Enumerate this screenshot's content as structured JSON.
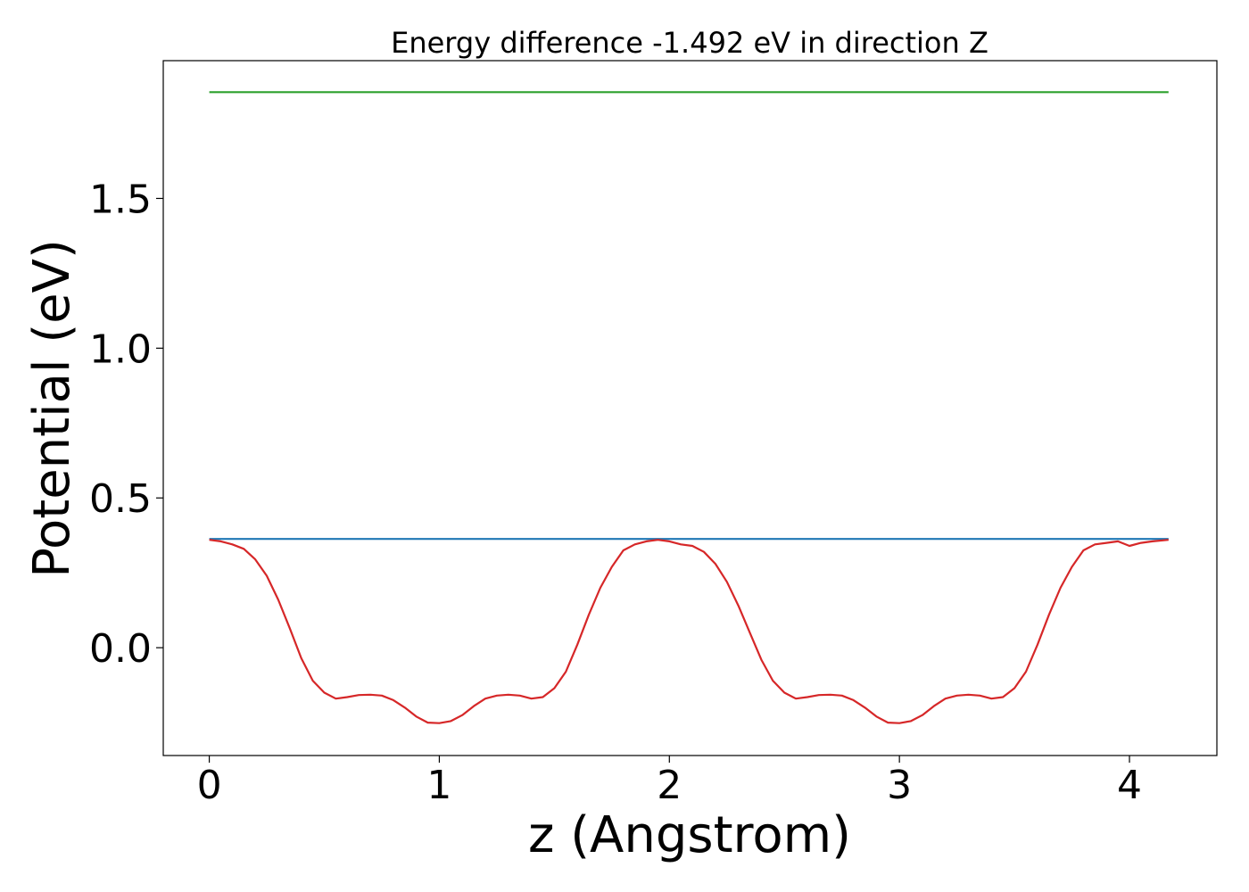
{
  "chart_data": {
    "type": "line",
    "title": "Energy difference -1.492 eV in direction Z",
    "xlabel": "z (Angstrom)",
    "ylabel": "Potential (eV)",
    "xlim": [
      -0.2,
      4.38
    ],
    "ylim": [
      -0.36,
      1.96
    ],
    "xticks": [
      0,
      1,
      2,
      3,
      4
    ],
    "xtick_labels": [
      "0",
      "1",
      "2",
      "3",
      "4"
    ],
    "yticks": [
      0.0,
      0.5,
      1.0,
      1.5
    ],
    "ytick_labels": [
      "0.0",
      "0.5",
      "1.0",
      "1.5"
    ],
    "grid": false,
    "series": [
      {
        "color": "#2ca02c",
        "x": [
          0,
          4.17
        ],
        "y": [
          1.855,
          1.855
        ]
      },
      {
        "color": "#1f77b4",
        "x": [
          0,
          4.17
        ],
        "y": [
          0.363,
          0.363
        ]
      },
      {
        "color": "#d62728",
        "x": [
          0.0,
          0.05,
          0.1,
          0.15,
          0.2,
          0.25,
          0.3,
          0.35,
          0.4,
          0.45,
          0.5,
          0.55,
          0.6,
          0.65,
          0.7,
          0.75,
          0.8,
          0.85,
          0.9,
          0.95,
          1.0,
          1.05,
          1.1,
          1.15,
          1.2,
          1.25,
          1.3,
          1.35,
          1.4,
          1.45,
          1.5,
          1.55,
          1.6,
          1.65,
          1.7,
          1.75,
          1.8,
          1.85,
          1.9,
          1.95,
          2.0,
          2.05,
          2.1,
          2.15,
          2.2,
          2.25,
          2.3,
          2.35,
          2.4,
          2.45,
          2.5,
          2.55,
          2.6,
          2.65,
          2.7,
          2.75,
          2.8,
          2.85,
          2.9,
          2.95,
          3.0,
          3.05,
          3.1,
          3.15,
          3.2,
          3.25,
          3.3,
          3.35,
          3.4,
          3.45,
          3.5,
          3.55,
          3.6,
          3.65,
          3.7,
          3.75,
          3.8,
          3.85,
          3.9,
          3.95,
          4.0,
          4.05,
          4.1,
          4.17
        ],
        "y": [
          0.36,
          0.355,
          0.345,
          0.33,
          0.295,
          0.24,
          0.16,
          0.065,
          -0.035,
          -0.11,
          -0.15,
          -0.17,
          -0.165,
          -0.158,
          -0.157,
          -0.16,
          -0.175,
          -0.2,
          -0.23,
          -0.25,
          -0.252,
          -0.245,
          -0.225,
          -0.195,
          -0.17,
          -0.16,
          -0.157,
          -0.16,
          -0.17,
          -0.165,
          -0.135,
          -0.08,
          0.01,
          0.11,
          0.2,
          0.27,
          0.325,
          0.345,
          0.355,
          0.36,
          0.355,
          0.345,
          0.34,
          0.32,
          0.28,
          0.22,
          0.14,
          0.05,
          -0.04,
          -0.11,
          -0.15,
          -0.17,
          -0.165,
          -0.158,
          -0.157,
          -0.16,
          -0.175,
          -0.2,
          -0.23,
          -0.25,
          -0.252,
          -0.245,
          -0.225,
          -0.195,
          -0.17,
          -0.16,
          -0.157,
          -0.16,
          -0.17,
          -0.165,
          -0.135,
          -0.08,
          0.01,
          0.11,
          0.2,
          0.27,
          0.325,
          0.345,
          0.35,
          0.355,
          0.34,
          0.35,
          0.355,
          0.36
        ]
      }
    ]
  }
}
